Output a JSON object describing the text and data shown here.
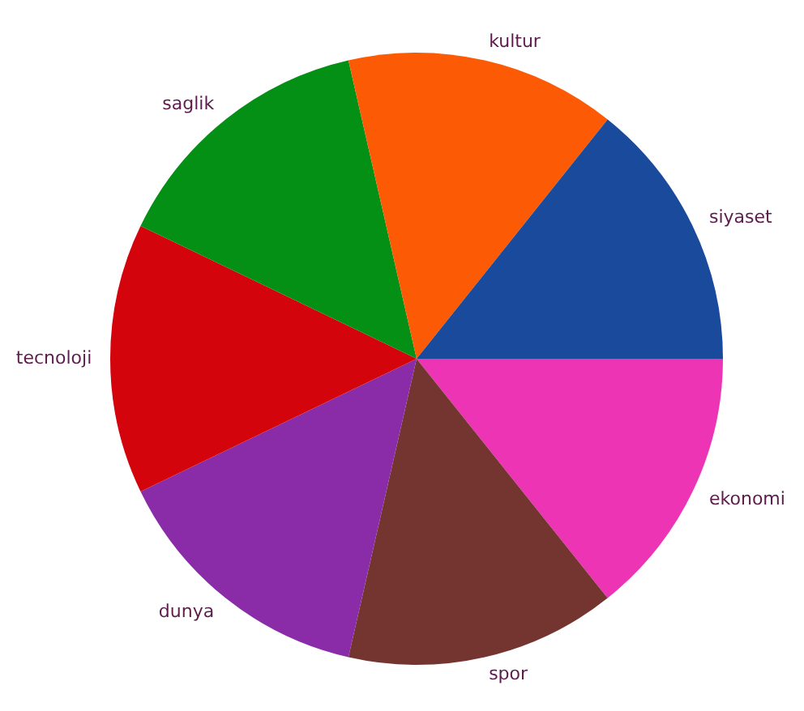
{
  "chart_data": {
    "type": "pie",
    "categories": [
      "siyaset",
      "kultur",
      "saglik",
      "tecnoloji",
      "dunya",
      "spor",
      "ekonomi"
    ],
    "values": [
      14.29,
      14.29,
      14.29,
      14.29,
      14.29,
      14.29,
      14.29
    ],
    "colors": [
      "#1a4a9c",
      "#fc5a04",
      "#049014",
      "#d4040c",
      "#8a2ca8",
      "#743430",
      "#ec34b4"
    ],
    "legend": false
  }
}
